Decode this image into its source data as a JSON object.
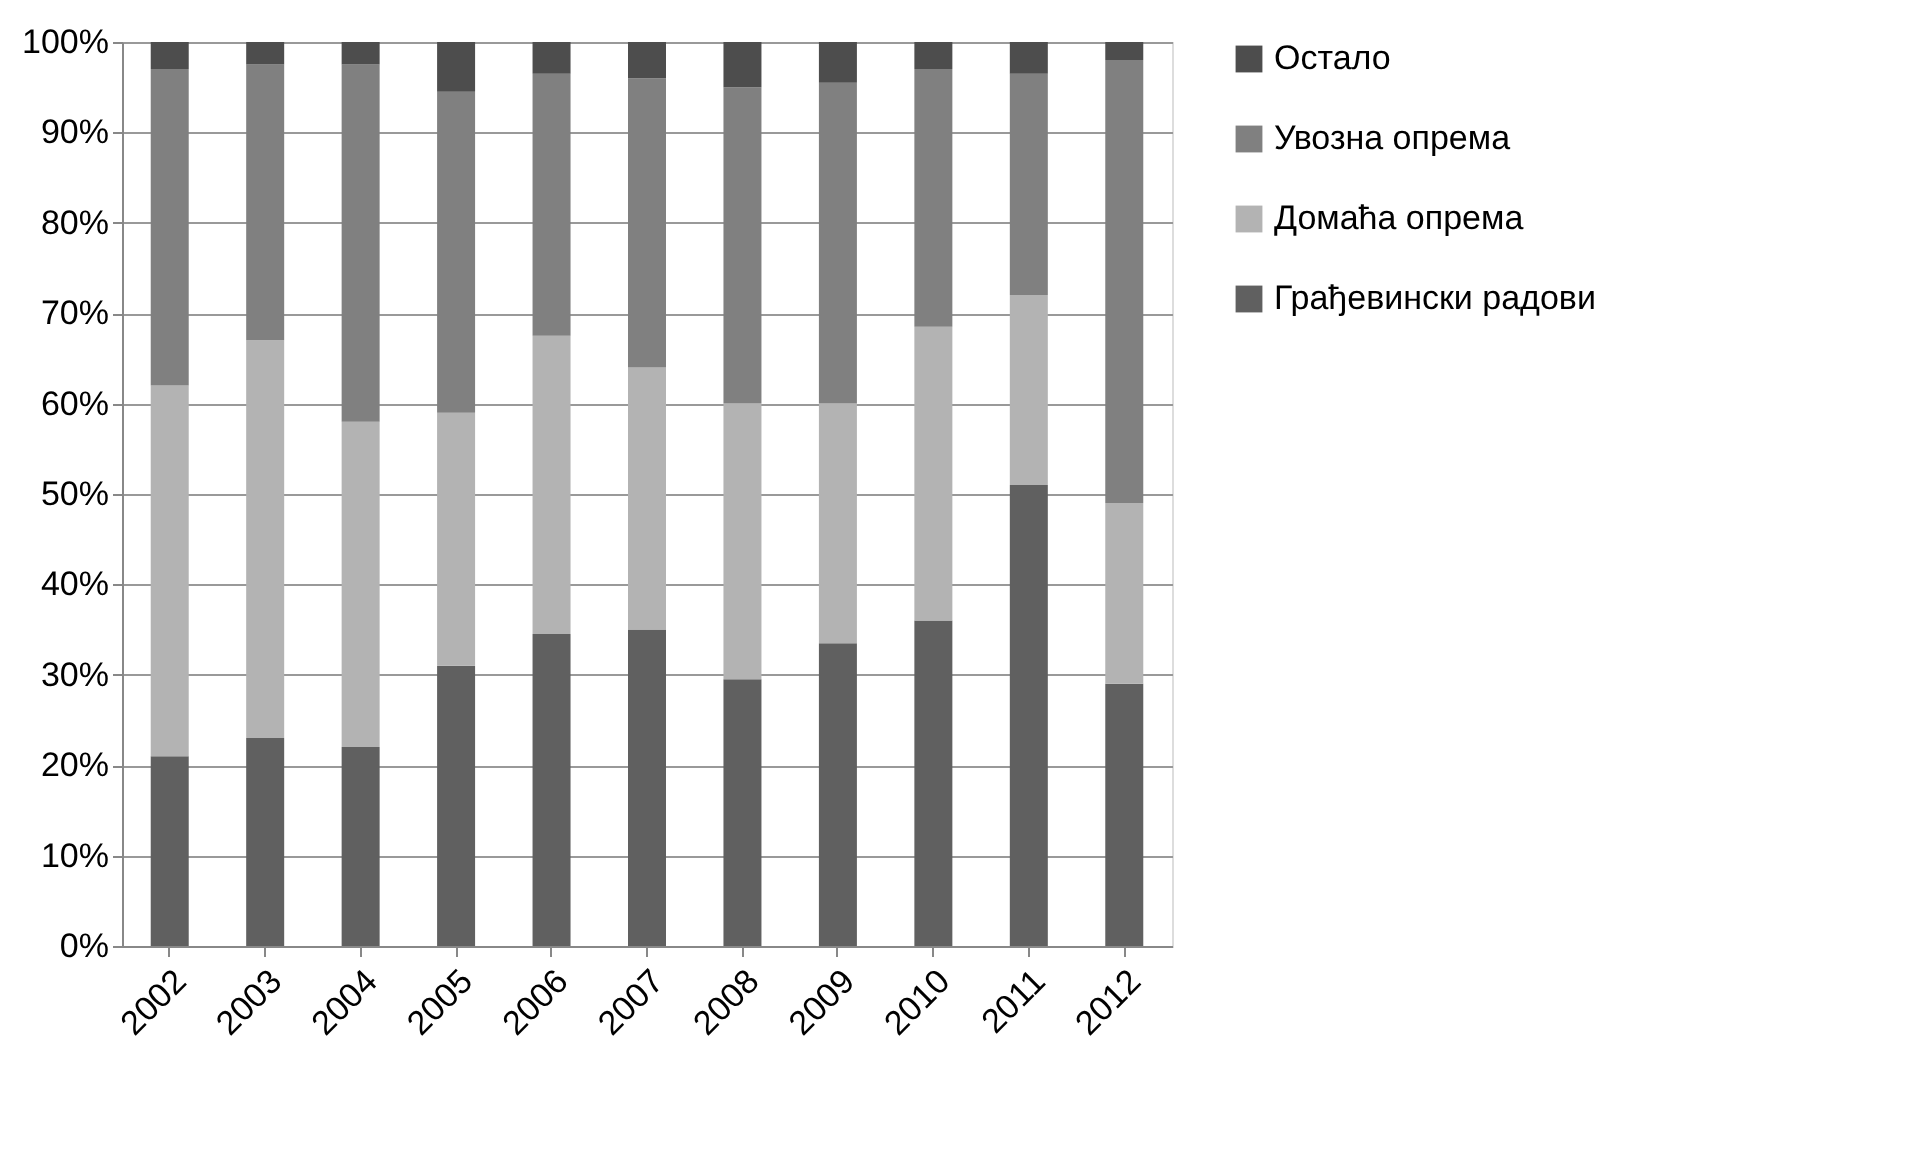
{
  "chart_data": {
    "type": "bar",
    "stacked": true,
    "categories": [
      "2002",
      "2003",
      "2004",
      "2005",
      "2006",
      "2007",
      "2008",
      "2009",
      "2010",
      "2011",
      "2012"
    ],
    "series": [
      {
        "name": "Грађевински радови",
        "color": "#606060",
        "values": [
          21,
          23,
          22,
          31,
          34.5,
          35,
          29.5,
          33.5,
          36,
          51,
          29
        ]
      },
      {
        "name": "Домаћа опрема",
        "color": "#b3b3b3",
        "values": [
          41,
          44,
          36,
          28,
          33,
          29,
          30.5,
          26.5,
          32.5,
          21,
          20
        ]
      },
      {
        "name": "Увозна опрема",
        "color": "#808080",
        "values": [
          35,
          30.5,
          39.5,
          35.5,
          29,
          32,
          35,
          35.5,
          28.5,
          24.5,
          49
        ]
      },
      {
        "name": "Остало",
        "color": "#4d4d4d",
        "values": [
          3,
          2.5,
          2.5,
          5.5,
          3.5,
          4,
          5,
          4.5,
          3,
          3.5,
          2
        ]
      }
    ],
    "ylim": [
      0,
      100
    ],
    "yticks": [
      {
        "value": 0,
        "label": "0%"
      },
      {
        "value": 10,
        "label": "10%"
      },
      {
        "value": 20,
        "label": "20%"
      },
      {
        "value": 30,
        "label": "30%"
      },
      {
        "value": 40,
        "label": "40%"
      },
      {
        "value": 50,
        "label": "50%"
      },
      {
        "value": 60,
        "label": "60%"
      },
      {
        "value": 70,
        "label": "70%"
      },
      {
        "value": 80,
        "label": "80%"
      },
      {
        "value": 90,
        "label": "90%"
      },
      {
        "value": 100,
        "label": "100%"
      }
    ],
    "grid": "y",
    "legend": "right"
  }
}
